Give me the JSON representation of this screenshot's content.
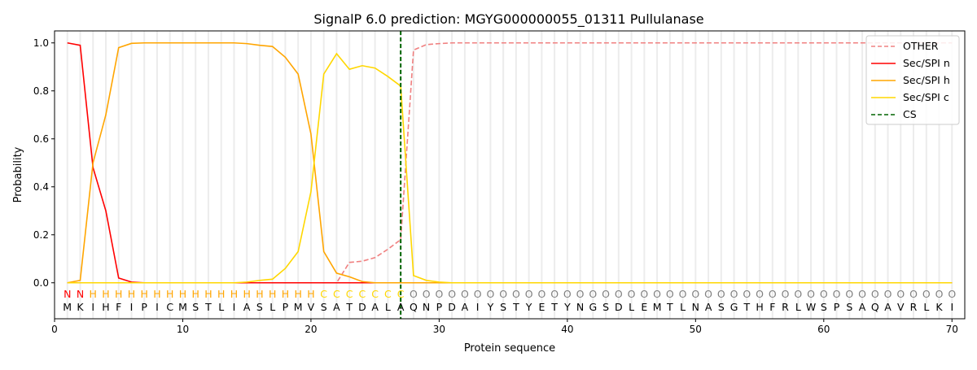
{
  "chart_data": {
    "type": "line",
    "title": "SignalP 6.0 prediction: MGYG000000055_01311 Pullulanase",
    "xlabel": "Protein sequence",
    "ylabel": "Probability",
    "xlim": [
      0,
      71
    ],
    "ylim": [
      -0.15,
      1.05
    ],
    "xticks": [
      0,
      10,
      20,
      30,
      40,
      50,
      60,
      70
    ],
    "yticks": [
      0.0,
      0.2,
      0.4,
      0.6,
      0.8,
      1.0
    ],
    "legend_position": "top-right",
    "sequence": "MKIHFIPICMSTLIASLPMVSATDALAQNPDAIYSTYETYNGSDLEMTLNASGTHFRLWSPSAQAVRLKI",
    "labels": "NNHHHHHHHHHHHHHHHHHHCCCCCCCOOOOOOOOOOOOOOOOOOOOOOOOOOOOOOOOOOOOOOOOOOO",
    "label_colors": {
      "N": "#ff0000",
      "H": "#ffa500",
      "C": "#ffd700",
      "O": "#808080"
    },
    "cs_position": 27,
    "series": [
      {
        "name": "OTHER",
        "color": "#f08080",
        "dash": true,
        "values": [
          0,
          0,
          0,
          0,
          0,
          0,
          0,
          0,
          0,
          0,
          0,
          0,
          0,
          0,
          0,
          0,
          0,
          0,
          0,
          0,
          0,
          0,
          0.085,
          0.09,
          0.105,
          0.14,
          0.18,
          0.97,
          0.993,
          0.997,
          1,
          1,
          1,
          1,
          1,
          1,
          1,
          1,
          1,
          1,
          1,
          1,
          1,
          1,
          1,
          1,
          1,
          1,
          1,
          1,
          1,
          1,
          1,
          1,
          1,
          1,
          1,
          1,
          1,
          1,
          1,
          1,
          1,
          1,
          1,
          1,
          1,
          1,
          1,
          1
        ]
      },
      {
        "name": "Sec/SPI n",
        "color": "#ff0000",
        "values": [
          1.0,
          0.99,
          0.48,
          0.3,
          0.02,
          0.003,
          0,
          0,
          0,
          0,
          0,
          0,
          0,
          0,
          0,
          0,
          0,
          0,
          0,
          0,
          0,
          0,
          0,
          0,
          0,
          0,
          0,
          0,
          0,
          0,
          0,
          0,
          0,
          0,
          0,
          0,
          0,
          0,
          0,
          0,
          0,
          0,
          0,
          0,
          0,
          0,
          0,
          0,
          0,
          0,
          0,
          0,
          0,
          0,
          0,
          0,
          0,
          0,
          0,
          0,
          0,
          0,
          0,
          0,
          0,
          0,
          0,
          0,
          0,
          0
        ]
      },
      {
        "name": "Sec/SPI h",
        "color": "#ffa500",
        "values": [
          0,
          0.01,
          0.5,
          0.7,
          0.98,
          0.998,
          1,
          1,
          1,
          1,
          1,
          1,
          1,
          1,
          0.997,
          0.99,
          0.985,
          0.94,
          0.87,
          0.62,
          0.13,
          0.04,
          0.025,
          0.005,
          0,
          0,
          0,
          0,
          0,
          0,
          0,
          0,
          0,
          0,
          0,
          0,
          0,
          0,
          0,
          0,
          0,
          0,
          0,
          0,
          0,
          0,
          0,
          0,
          0,
          0,
          0,
          0,
          0,
          0,
          0,
          0,
          0,
          0,
          0,
          0,
          0,
          0,
          0,
          0,
          0,
          0,
          0,
          0,
          0,
          0
        ]
      },
      {
        "name": "Sec/SPI c",
        "color": "#ffd700",
        "values": [
          0,
          0,
          0,
          0,
          0,
          0,
          0,
          0,
          0,
          0,
          0,
          0,
          0,
          0,
          0.003,
          0.01,
          0.015,
          0.06,
          0.13,
          0.38,
          0.87,
          0.955,
          0.89,
          0.905,
          0.895,
          0.86,
          0.82,
          0.03,
          0.01,
          0.003,
          0,
          0,
          0,
          0,
          0,
          0,
          0,
          0,
          0,
          0,
          0,
          0,
          0,
          0,
          0,
          0,
          0,
          0,
          0,
          0,
          0,
          0,
          0,
          0,
          0,
          0,
          0,
          0,
          0,
          0,
          0,
          0,
          0,
          0,
          0,
          0,
          0,
          0,
          0,
          0
        ]
      }
    ],
    "cs_legend": {
      "name": "CS",
      "color": "#006400"
    }
  }
}
